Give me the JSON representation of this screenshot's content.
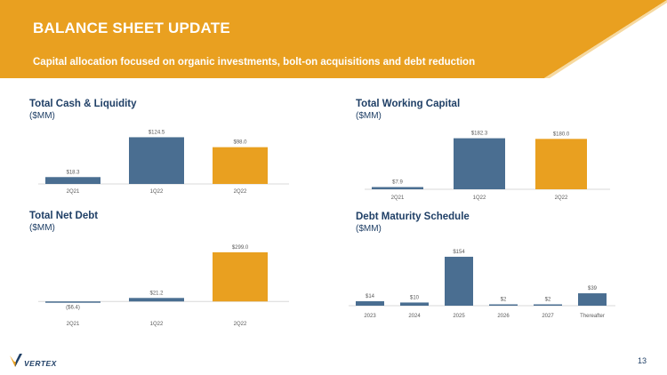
{
  "header": {
    "title": "BALANCE SHEET UPDATE",
    "subtitle": "Capital allocation focused on organic investments, bolt-on acquisitions and debt reduction"
  },
  "colors": {
    "banner": "#E9A020",
    "navy": "#4A6E91",
    "orange": "#E9A020",
    "title": "#1F3F66"
  },
  "chart_data": [
    {
      "id": "cash",
      "type": "bar",
      "title": "Total Cash & Liquidity",
      "unit": "($MM)",
      "categories": [
        "2Q21",
        "1Q22",
        "2Q22"
      ],
      "values": [
        18.3,
        124.5,
        98.0
      ],
      "labels": [
        "$18.3",
        "$124.5",
        "$98.0"
      ],
      "ylim": [
        0,
        135
      ]
    },
    {
      "id": "wc",
      "type": "bar",
      "title": "Total Working Capital",
      "unit": "($MM)",
      "categories": [
        "2Q21",
        "1Q22",
        "2Q22"
      ],
      "values": [
        7.9,
        182.3,
        180.0
      ],
      "labels": [
        "$7.9",
        "$182.3",
        "$180.0"
      ],
      "ylim": [
        0,
        200
      ]
    },
    {
      "id": "debt",
      "type": "bar",
      "title": "Total Net Debt",
      "unit": "($MM)",
      "categories": [
        "2Q21",
        "1Q22",
        "2Q22"
      ],
      "values": [
        -6.4,
        21.2,
        299.0
      ],
      "labels": [
        "($6.4)",
        "$21.2",
        "$299.0"
      ],
      "ylim": [
        -15,
        320
      ]
    },
    {
      "id": "maturity",
      "type": "bar",
      "title": "Debt Maturity Schedule",
      "unit": "($MM)",
      "categories": [
        "2023",
        "2024",
        "2025",
        "2026",
        "2027",
        "Thereafter"
      ],
      "values": [
        14,
        10,
        154,
        2,
        2,
        39
      ],
      "labels": [
        "$14",
        "$10",
        "$154",
        "$2",
        "$2",
        "$39"
      ],
      "ylim": [
        0,
        165
      ]
    }
  ],
  "footer": {
    "logo_text": "VERTEX",
    "page_number": "13"
  }
}
